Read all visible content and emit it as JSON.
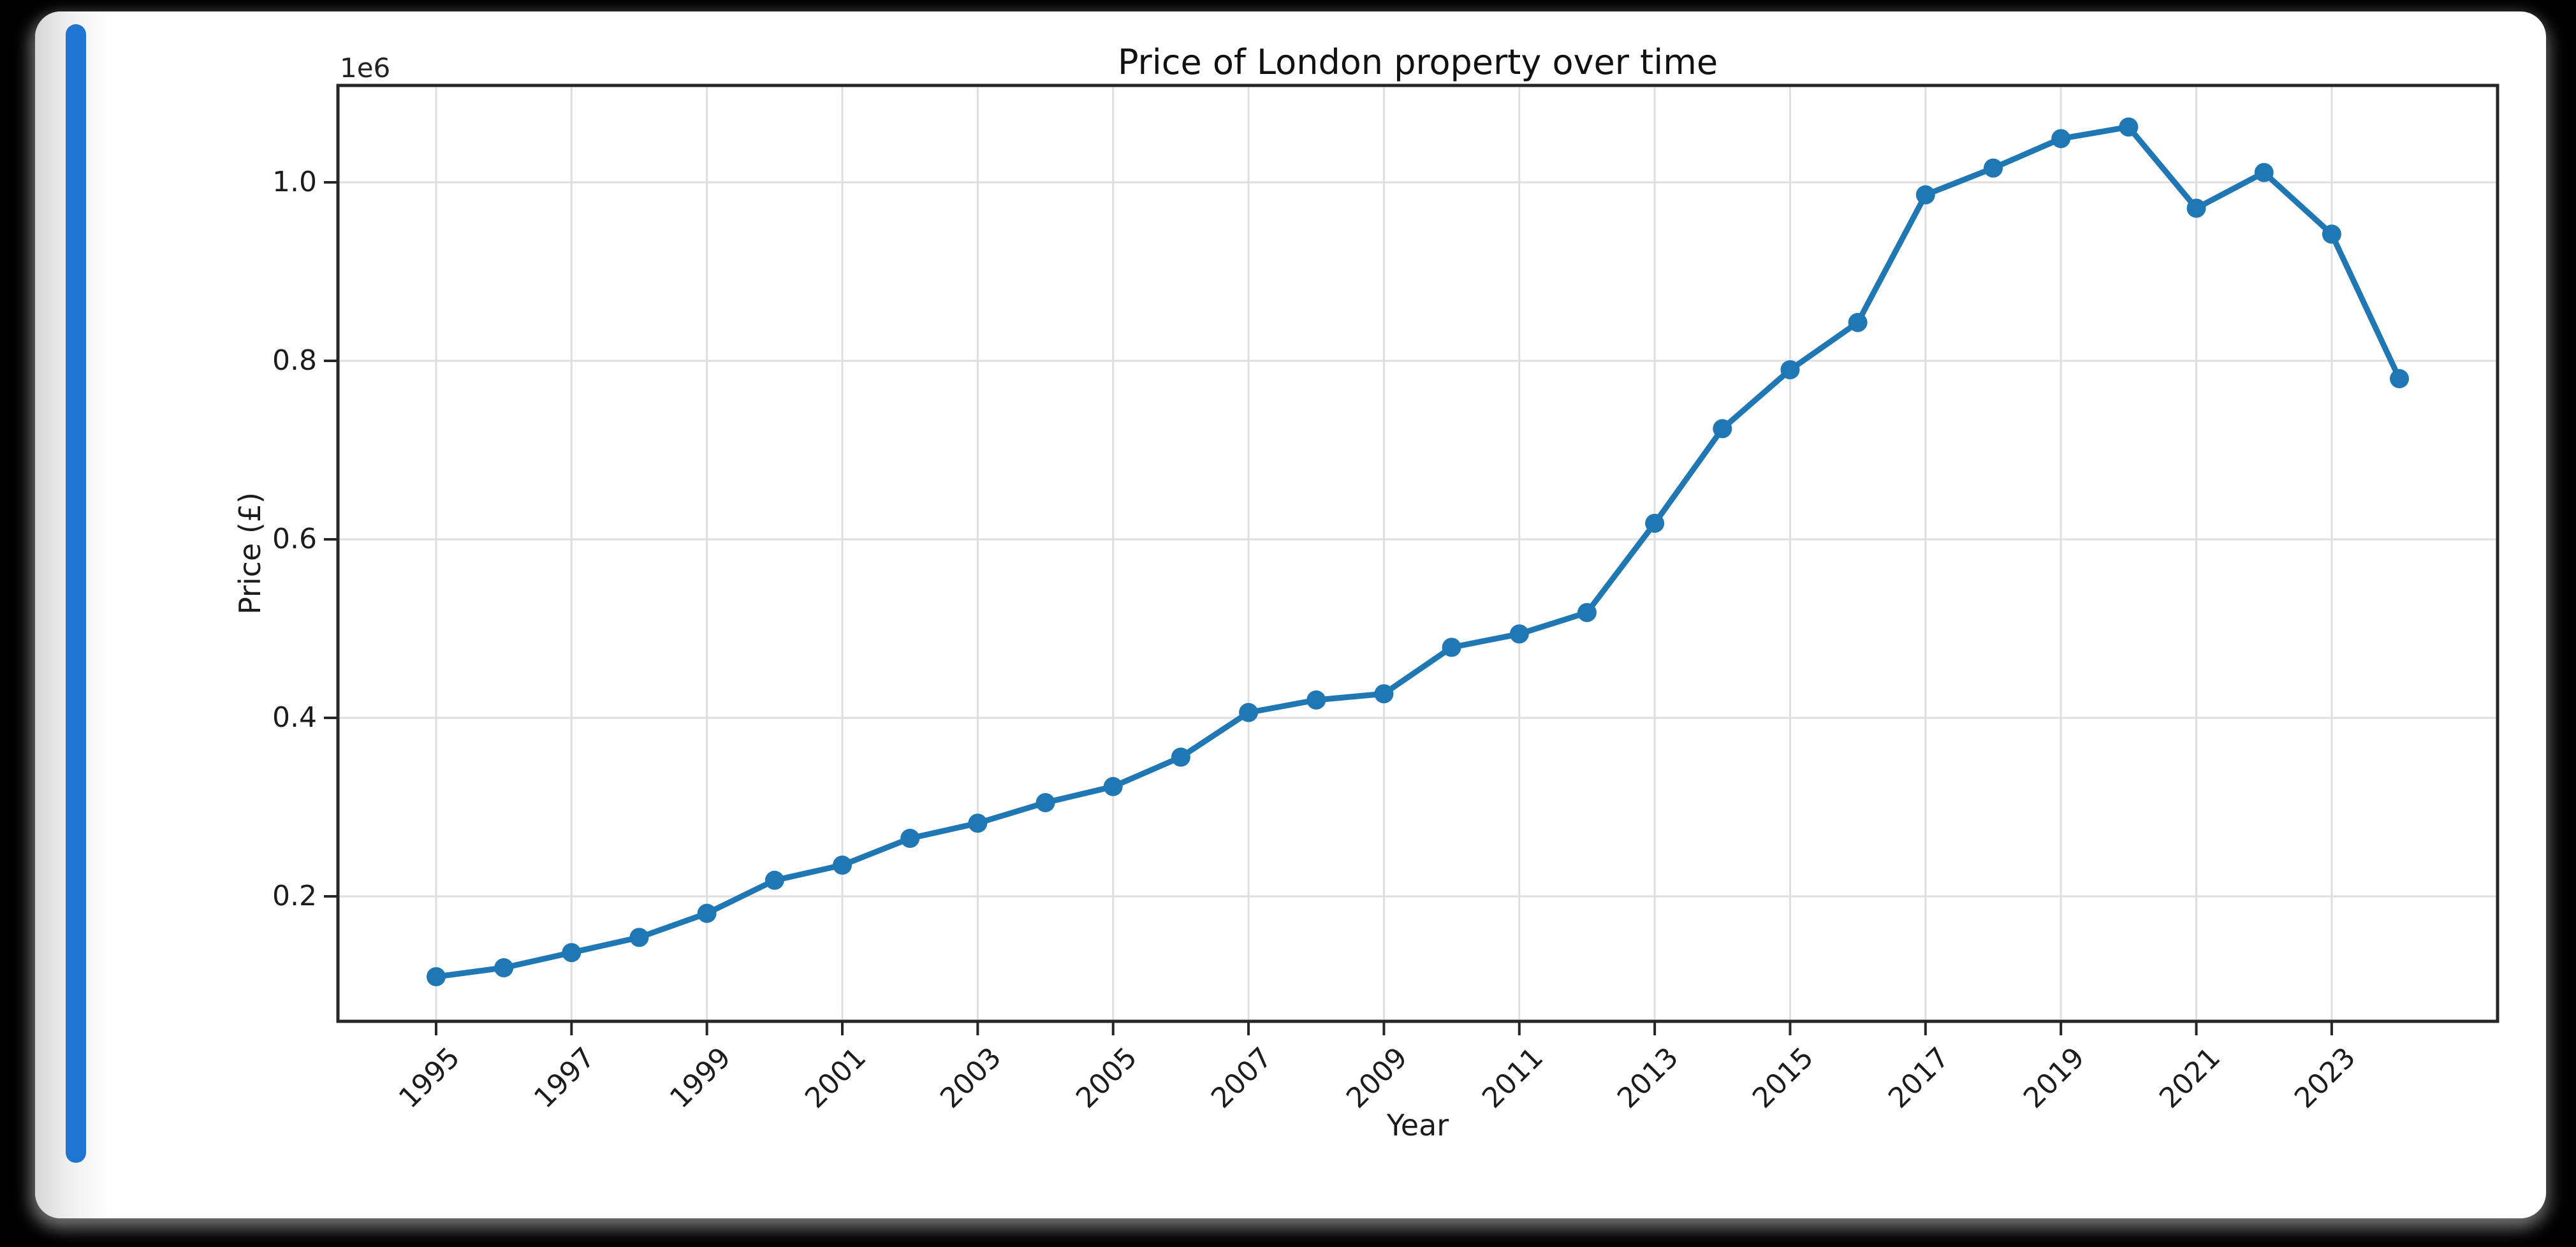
{
  "page": {
    "background_color": "#000000"
  },
  "card": {
    "background_color": "#ffffff",
    "accent_bar_color": "#1e76d2"
  },
  "chart_data": {
    "type": "line",
    "title": "Price of London property over time",
    "xlabel": "Year",
    "ylabel": "Price (£)",
    "offset_text": "1e6",
    "grid": true,
    "legend": "none",
    "marker": "o",
    "line_color": "#1f77b4",
    "grid_color": "#dfdfdf",
    "spine_color": "#262626",
    "xlim": [
      1993.55,
      2025.45
    ],
    "ylim": [
      60000,
      1108600
    ],
    "x": [
      1995,
      1996,
      1997,
      1998,
      1999,
      2000,
      2001,
      2002,
      2003,
      2004,
      2005,
      2006,
      2007,
      2008,
      2009,
      2010,
      2011,
      2012,
      2013,
      2014,
      2015,
      2016,
      2017,
      2018,
      2019,
      2020,
      2021,
      2022,
      2023,
      2024
    ],
    "y": [
      110000,
      120000,
      137000,
      154000,
      181000,
      218000,
      235000,
      265000,
      282000,
      305000,
      323000,
      356000,
      406000,
      420000,
      427000,
      479000,
      494000,
      518000,
      618000,
      724000,
      790000,
      843000,
      986000,
      1016000,
      1049000,
      1062000,
      971000,
      1011000,
      942000,
      780000
    ],
    "xticks": {
      "values": [
        1995,
        1997,
        1999,
        2001,
        2003,
        2005,
        2007,
        2009,
        2011,
        2013,
        2015,
        2017,
        2019,
        2021,
        2023
      ],
      "labels": [
        "1995",
        "1997",
        "1999",
        "2001",
        "2003",
        "2005",
        "2007",
        "2009",
        "2011",
        "2013",
        "2015",
        "2017",
        "2019",
        "2021",
        "2023"
      ]
    },
    "yticks": {
      "values": [
        200000,
        400000,
        600000,
        800000,
        1000000
      ],
      "labels": [
        "0.2",
        "0.4",
        "0.6",
        "0.8",
        "1.0"
      ]
    }
  }
}
